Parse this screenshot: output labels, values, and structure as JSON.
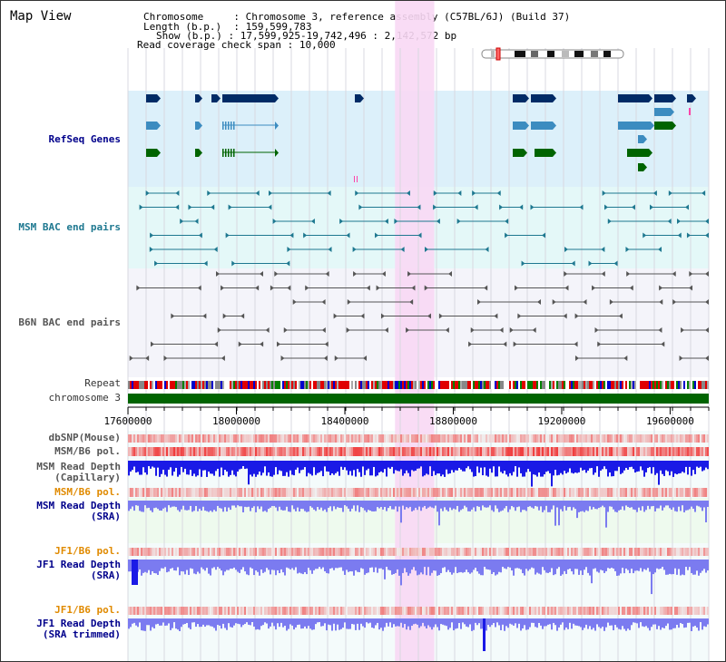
{
  "page_title": "Map View",
  "info": {
    "chromosome_label": "Chromosome",
    "chromosome_value": "Chromosome 3, reference assembly (C57BL/6J) (Build 37)",
    "length_label": "Length (b.p.)",
    "length_value": "159,599,783",
    "show_label": "Show (b.p.)",
    "show_value": "17,599,925-19,742,496 : 2,142,572 bp",
    "coverage_label": "Read coverage check span",
    "coverage_value": "10,000"
  },
  "tracks": {
    "refseq": "RefSeq Genes",
    "msm_bac": "MSM BAC end pairs",
    "b6n_bac": "B6N BAC end pairs",
    "repeat": "Repeat",
    "chromosome": "chromosome 3",
    "dbsnp": "dbSNP(Mouse)",
    "msm_b6_pol_1": "MSM/B6 pol.",
    "msm_depth_cap_1": "MSM Read Depth",
    "msm_depth_cap_2": "(Capillary)",
    "msm_b6_pol_2": "MSM/B6 pol.",
    "msm_depth_sra_1": "MSM Read Depth",
    "msm_depth_sra_2": "(SRA)",
    "jf1_b6_pol_1": "JF1/B6 pol.",
    "jf1_depth_sra_1": "JF1 Read Depth",
    "jf1_depth_sra_2": "(SRA)",
    "jf1_b6_pol_2": "JF1/B6 pol.",
    "jf1_depth_trim_1": "JF1 Read Depth",
    "jf1_depth_trim_2": "(SRA trimmed)"
  },
  "axis": {
    "range_bp": [
      17599925,
      19742496
    ],
    "ticks": [
      {
        "value": 17600000,
        "label": "17600000"
      },
      {
        "value": 18000000,
        "label": "18000000"
      },
      {
        "value": 18400000,
        "label": "18400000"
      },
      {
        "value": 18800000,
        "label": "18800000"
      },
      {
        "value": 19200000,
        "label": "19200000"
      },
      {
        "value": 19600000,
        "label": "19600000"
      }
    ]
  },
  "highlight_bp": [
    18585000,
    18730000
  ],
  "colors": {
    "title_blue": "#00008b",
    "label_orange": "#e08a00",
    "label_blue": "#00008b",
    "label_black": "#333333",
    "refseq_bg": "#dcf0fa",
    "msm_bg": "#e4f8f8",
    "b6n_bg": "#f4f4fa",
    "highlight": "#f8d8f4",
    "gene_navy": "#002b66",
    "gene_blue": "#3c8cc0",
    "gene_green": "#006400",
    "msm_bac": "#1e7890",
    "b6n_bac": "#555555",
    "chromosome_green": "#006400",
    "depth_blue": "#1a1ae6",
    "depth_light": "#7b7bf0"
  }
}
